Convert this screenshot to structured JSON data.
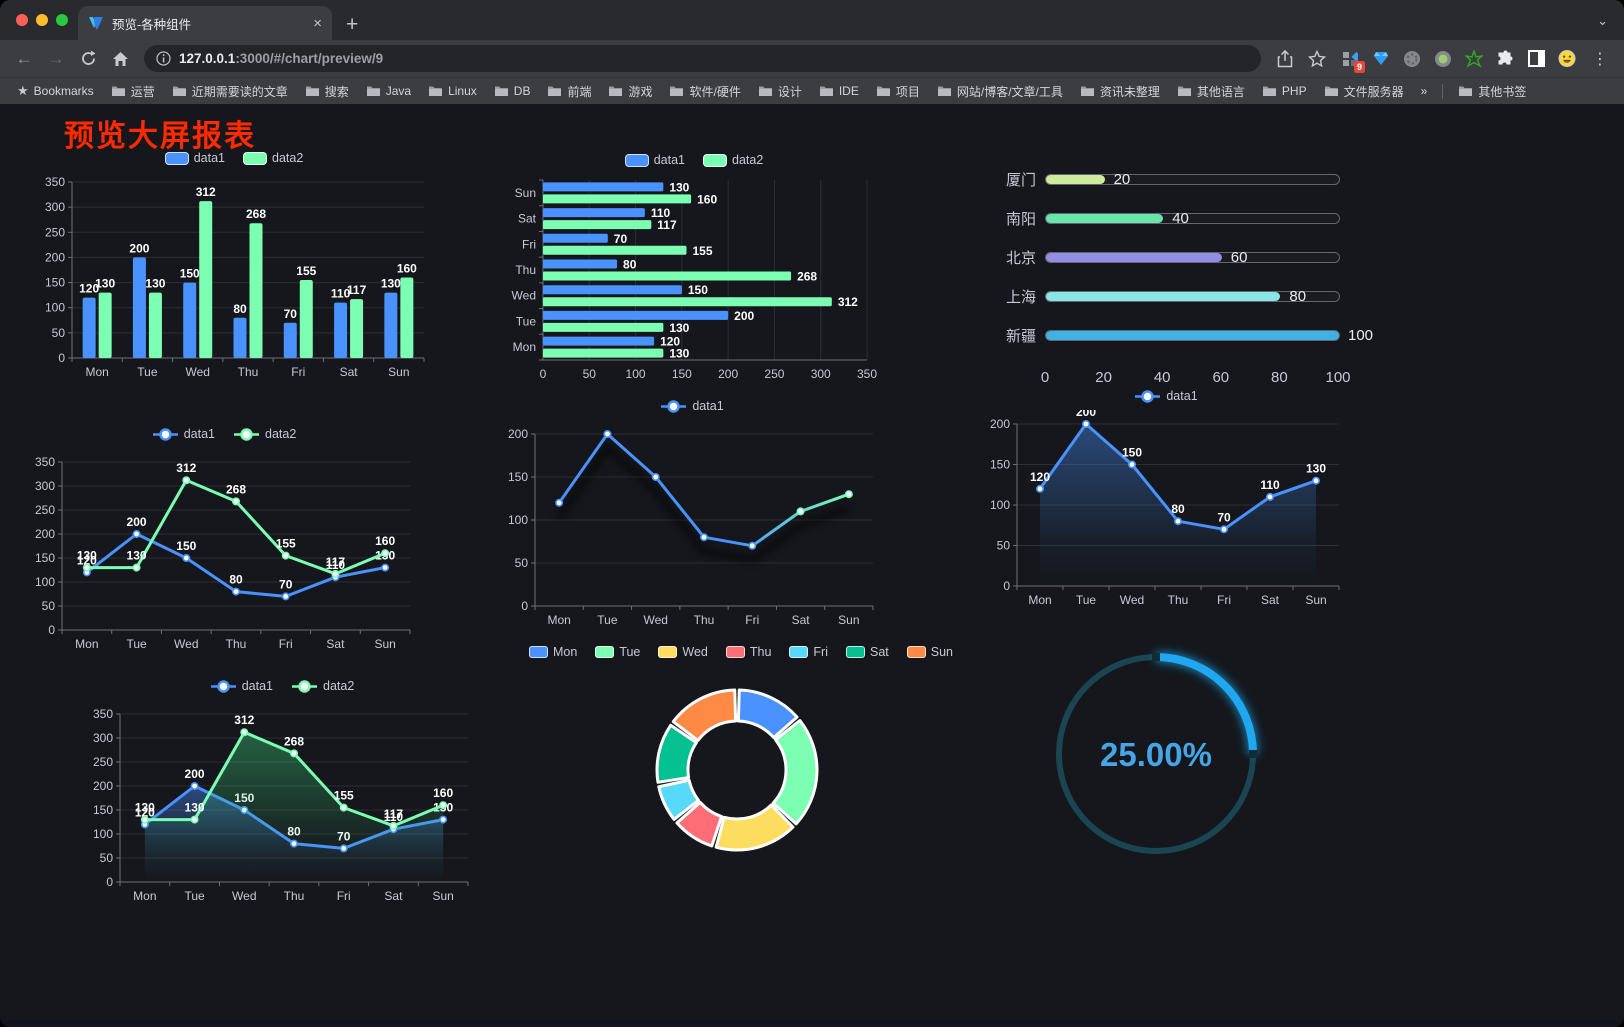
{
  "browser": {
    "traffic_lights": [
      "#ff5f57",
      "#febc2e",
      "#28c840"
    ],
    "tab": {
      "title": "预览-各种组件",
      "close_label": "×",
      "new_tab_label": "+"
    },
    "url": {
      "host": "127.0.0.1",
      "rest": ":3000/#/chart/preview/9"
    },
    "extension_badge": "9",
    "menu_dots": "⋮",
    "tab_search_chevron": "⌄",
    "back_arrow": "←",
    "forward_arrow": "→",
    "bookmarks": [
      "Bookmarks",
      "运营",
      "近期需要读的文章",
      "搜索",
      "Java",
      "Linux",
      "DB",
      "前端",
      "游戏",
      "软件/硬件",
      "设计",
      "IDE",
      "项目",
      "网站/博客/文章/工具",
      "资讯未整理",
      "其他语言",
      "PHP",
      "文件服务器",
      "»",
      "其他书签"
    ]
  },
  "page": {
    "title": "预览大屏报表",
    "title_color": "#ff2a00",
    "background": "#15171c"
  },
  "palette": {
    "data1_blue": "#4992ff",
    "data2_green": "#7cffb2",
    "axis_label": "#c9c9d6",
    "axis_line": "#6e7079",
    "grid_line": "rgba(255,255,255,0.10)"
  },
  "chart_data": [
    {
      "id": "bar-vertical",
      "type": "bar",
      "categories": [
        "Mon",
        "Tue",
        "Wed",
        "Thu",
        "Fri",
        "Sat",
        "Sun"
      ],
      "series": [
        {
          "name": "data1",
          "color": "#4992ff",
          "values": [
            120,
            200,
            150,
            80,
            70,
            110,
            130
          ]
        },
        {
          "name": "data2",
          "color": "#7cffb2",
          "values": [
            130,
            130,
            312,
            268,
            155,
            117,
            160
          ]
        }
      ],
      "ylim": [
        0,
        350
      ],
      "ystep": 50,
      "labels": true,
      "legend": true
    },
    {
      "id": "bar-horizontal",
      "type": "hbar",
      "categories": [
        "Sun",
        "Sat",
        "Fri",
        "Thu",
        "Wed",
        "Tue",
        "Mon"
      ],
      "series": [
        {
          "name": "data1",
          "color": "#4992ff",
          "values": [
            130,
            110,
            70,
            80,
            150,
            200,
            120
          ]
        },
        {
          "name": "data2",
          "color": "#7cffb2",
          "values": [
            160,
            117,
            155,
            268,
            312,
            130,
            130
          ]
        }
      ],
      "xlim": [
        0,
        350
      ],
      "xstep": 50,
      "labels": true,
      "legend": true
    },
    {
      "id": "progress-list",
      "type": "progress",
      "max": 100,
      "ticks": [
        0,
        20,
        40,
        60,
        80,
        100
      ],
      "items": [
        {
          "label": "厦门",
          "value": 20,
          "color": "#cdea9f"
        },
        {
          "label": "南阳",
          "value": 40,
          "color": "#68e4ad"
        },
        {
          "label": "北京",
          "value": 60,
          "color": "#918ee4"
        },
        {
          "label": "上海",
          "value": 80,
          "color": "#8ae6e4"
        },
        {
          "label": "新疆",
          "value": 100,
          "color": "#3fb1e3"
        }
      ]
    },
    {
      "id": "line-two-series",
      "type": "line",
      "categories": [
        "Mon",
        "Tue",
        "Wed",
        "Thu",
        "Fri",
        "Sat",
        "Sun"
      ],
      "series": [
        {
          "name": "data1",
          "color": "#4992ff",
          "values": [
            120,
            200,
            150,
            80,
            70,
            110,
            130
          ]
        },
        {
          "name": "data2",
          "color": "#7cffb2",
          "values": [
            130,
            130,
            312,
            268,
            155,
            117,
            160
          ]
        }
      ],
      "ylim": [
        0,
        350
      ],
      "ystep": 50,
      "labels": true,
      "legend": true
    },
    {
      "id": "line-gradient",
      "type": "line",
      "categories": [
        "Mon",
        "Tue",
        "Wed",
        "Thu",
        "Fri",
        "Sat",
        "Sun"
      ],
      "series": [
        {
          "name": "data1",
          "color": "#4992ff",
          "color2": "#7cffb2",
          "values": [
            120,
            200,
            150,
            80,
            70,
            110,
            130
          ]
        }
      ],
      "ylim": [
        0,
        200
      ],
      "ystep": 50,
      "labels": false,
      "legend": true,
      "shadow": true
    },
    {
      "id": "area-single-series",
      "type": "line",
      "categories": [
        "Mon",
        "Tue",
        "Wed",
        "Thu",
        "Fri",
        "Sat",
        "Sun"
      ],
      "series": [
        {
          "name": "data1",
          "color": "#4992ff",
          "area": true,
          "values": [
            120,
            200,
            150,
            80,
            70,
            110,
            130
          ]
        }
      ],
      "ylim": [
        0,
        200
      ],
      "ystep": 50,
      "labels": true,
      "legend": true
    },
    {
      "id": "area-two-series",
      "type": "line",
      "categories": [
        "Mon",
        "Tue",
        "Wed",
        "Thu",
        "Fri",
        "Sat",
        "Sun"
      ],
      "series": [
        {
          "name": "data1",
          "color": "#4992ff",
          "area": true,
          "values": [
            120,
            200,
            150,
            80,
            70,
            110,
            130
          ]
        },
        {
          "name": "data2",
          "color": "#7cffb2",
          "area": true,
          "values": [
            130,
            130,
            312,
            268,
            155,
            117,
            160
          ]
        }
      ],
      "ylim": [
        0,
        350
      ],
      "ystep": 50,
      "labels": true,
      "legend": true
    },
    {
      "id": "donut-weekdays",
      "type": "pie",
      "items": [
        {
          "name": "Mon",
          "value": 120,
          "color": "#4992ff"
        },
        {
          "name": "Tue",
          "value": 200,
          "color": "#7cffb2"
        },
        {
          "name": "Wed",
          "value": 150,
          "color": "#fddd60"
        },
        {
          "name": "Thu",
          "value": 80,
          "color": "#ff6e76"
        },
        {
          "name": "Fri",
          "value": 70,
          "color": "#58d9f9"
        },
        {
          "name": "Sat",
          "value": 110,
          "color": "#05c091"
        },
        {
          "name": "Sun",
          "value": 130,
          "color": "#ff8a45"
        }
      ]
    },
    {
      "id": "gauge-percent",
      "type": "gauge",
      "value": 25,
      "max": 100,
      "display": "25.00%",
      "color": "#1fa7f0",
      "track_color": "#1c4552",
      "text_color": "#45a5e6"
    }
  ]
}
